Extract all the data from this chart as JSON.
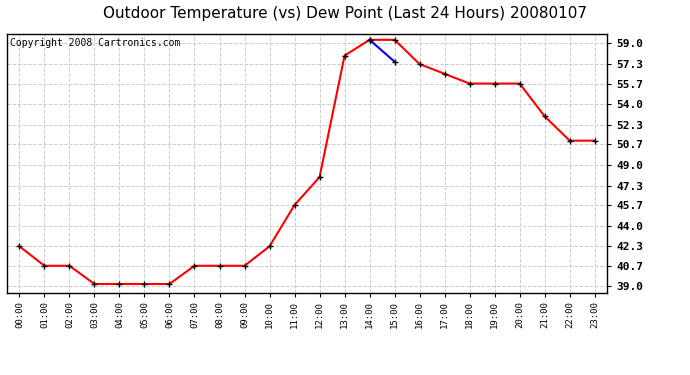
{
  "title": "Outdoor Temperature (vs) Dew Point (Last 24 Hours) 20080107",
  "copyright_text": "Copyright 2008 Cartronics.com",
  "x_labels": [
    "00:00",
    "01:00",
    "02:00",
    "03:00",
    "04:00",
    "05:00",
    "06:00",
    "07:00",
    "08:00",
    "09:00",
    "10:00",
    "11:00",
    "12:00",
    "13:00",
    "14:00",
    "15:00",
    "16:00",
    "17:00",
    "18:00",
    "19:00",
    "20:00",
    "21:00",
    "22:00",
    "23:00"
  ],
  "temp_y": [
    42.3,
    40.7,
    40.7,
    39.2,
    39.2,
    39.2,
    39.2,
    40.7,
    40.7,
    40.7,
    42.3,
    45.7,
    48.0,
    58.0,
    59.3,
    59.3,
    57.3,
    56.5,
    55.7,
    55.7,
    55.7,
    53.0,
    51.0,
    51.0
  ],
  "dew_y": [
    null,
    null,
    null,
    null,
    null,
    null,
    null,
    null,
    null,
    null,
    null,
    null,
    null,
    null,
    59.3,
    57.5,
    null,
    null,
    null,
    null,
    null,
    null,
    null,
    null
  ],
  "y_ticks": [
    39.0,
    40.7,
    42.3,
    44.0,
    45.7,
    47.3,
    49.0,
    50.7,
    52.3,
    54.0,
    55.7,
    57.3,
    59.0
  ],
  "ylim": [
    38.5,
    59.8
  ],
  "temp_color": "#FF0000",
  "dew_color": "#0000FF",
  "marker_color": "#000000",
  "grid_color": "#CCCCCC",
  "bg_color": "#FFFFFF",
  "title_fontsize": 11,
  "copyright_fontsize": 7,
  "tick_fontsize": 8,
  "xtick_fontsize": 6.5
}
